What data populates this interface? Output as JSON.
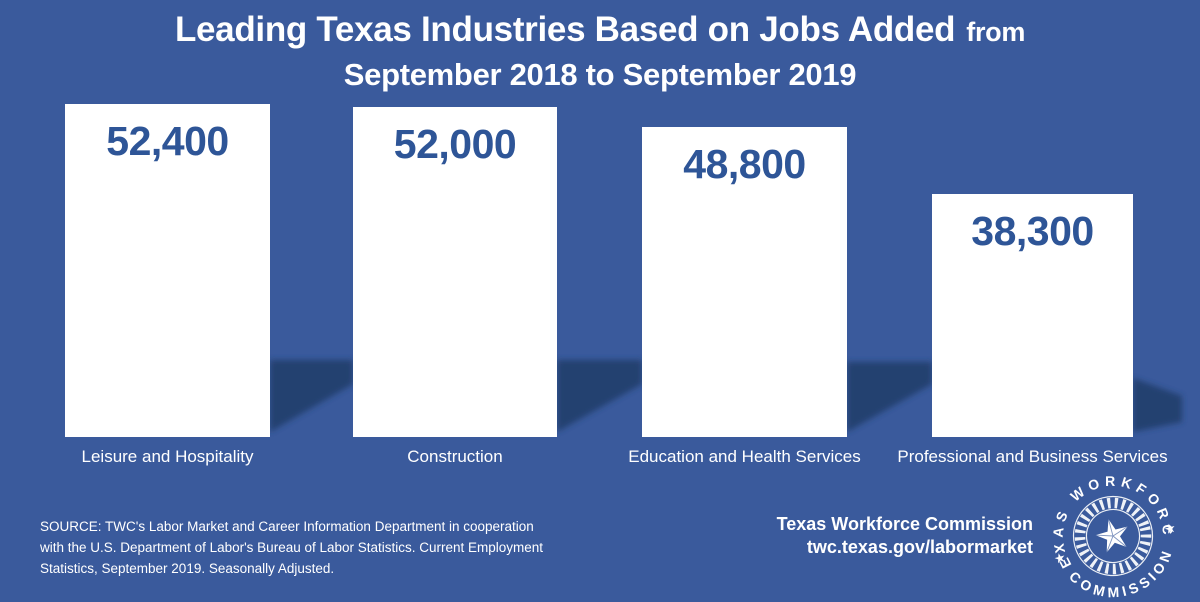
{
  "title": {
    "line1_main": "Leading Texas Industries Based on Jobs Added",
    "line1_suffix": "from",
    "line2": "September 2018 to September 2019"
  },
  "chart_data": {
    "type": "bar",
    "title": "Leading Texas Industries Based on Jobs Added from September 2018 to September 2019",
    "categories": [
      "Leisure and Hospitality",
      "Construction",
      "Education and Health Services",
      "Professional and Business Services"
    ],
    "values": [
      52400,
      52000,
      48800,
      38300
    ],
    "value_labels": [
      "52,400",
      "52,000",
      "48,800",
      "38,300"
    ],
    "unit": "jobs added",
    "ylim": [
      0,
      52400
    ],
    "orientation": "vertical",
    "gridlines": false,
    "axes_shown": false,
    "value_labels_position": "inside-top",
    "bar_color": "#FFFFFF",
    "value_label_color": "#2E5597",
    "background_color": "#3A5A9C",
    "shadow_color": "#24406E"
  },
  "source": {
    "line1": "SOURCE: TWC's Labor Market and Career Information Department in cooperation",
    "line2": "with the U.S. Department of Labor's Bureau of Labor Statistics. Current Employment",
    "line3": "Statistics, September 2019. Seasonally Adjusted."
  },
  "footer": {
    "org_name": "Texas Workforce Commission",
    "url": "twc.texas.gov/labormarket"
  },
  "logo": {
    "top_text": "TEXAS WORKFORCE",
    "bottom_text": "COMMISSION",
    "star_separator": "★"
  },
  "colors": {
    "background": "#3A5A9C",
    "shadow": "#24406E",
    "bar": "#FFFFFF",
    "value_text": "#2E5597",
    "light_text": "#FFFFFF"
  }
}
